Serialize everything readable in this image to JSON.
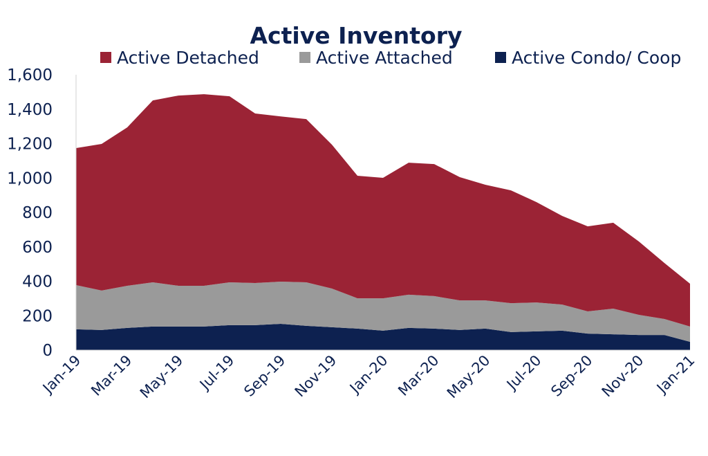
{
  "chart_data": {
    "type": "area",
    "stacked": true,
    "title": "Active Inventory",
    "xlabel": "",
    "ylabel": "",
    "ylim": [
      0,
      1600
    ],
    "yticks": [
      "0",
      "200",
      "400",
      "600",
      "800",
      "1,000",
      "1,200",
      "1,400",
      "1,600"
    ],
    "grid": false,
    "legend_position": "top",
    "categories": [
      "Jan-19",
      "Feb-19",
      "Mar-19",
      "Apr-19",
      "May-19",
      "Jun-19",
      "Jul-19",
      "Aug-19",
      "Sep-19",
      "Oct-19",
      "Nov-19",
      "Dec-19",
      "Jan-20",
      "Feb-20",
      "Mar-20",
      "Apr-20",
      "May-20",
      "Jun-20",
      "Jul-20",
      "Aug-20",
      "Sep-20",
      "Oct-20",
      "Nov-20",
      "Dec-20",
      "Jan-21"
    ],
    "tick_labels": [
      "Jan-19",
      "Mar-19",
      "May-19",
      "Jul-19",
      "Sep-19",
      "Nov-19",
      "Jan-20",
      "Mar-20",
      "May-20",
      "Jul-20",
      "Sep-20",
      "Nov-20",
      "Jan-21"
    ],
    "series": [
      {
        "name": "Active Condo/ Coop",
        "color": "#0d2150",
        "values": [
          121,
          117,
          129,
          137,
          137,
          137,
          145,
          145,
          153,
          141,
          133,
          125,
          113,
          129,
          125,
          117,
          125,
          105,
          109,
          113,
          96,
          92,
          88,
          88,
          48
        ]
      },
      {
        "name": "Active Attached",
        "color": "#9a9a9a",
        "values": [
          257,
          229,
          245,
          257,
          237,
          237,
          249,
          245,
          245,
          253,
          225,
          176,
          188,
          193,
          189,
          172,
          164,
          168,
          168,
          152,
          129,
          149,
          117,
          93,
          89
        ]
      },
      {
        "name": "Active Detached",
        "color": "#9b2335",
        "values": [
          796,
          852,
          920,
          1057,
          1105,
          1113,
          1081,
          985,
          960,
          948,
          836,
          712,
          700,
          767,
          767,
          716,
          672,
          655,
          583,
          515,
          494,
          499,
          426,
          325,
          249
        ]
      }
    ],
    "legend_order": [
      "Active Detached",
      "Active Attached",
      "Active Condo/ Coop"
    ]
  }
}
